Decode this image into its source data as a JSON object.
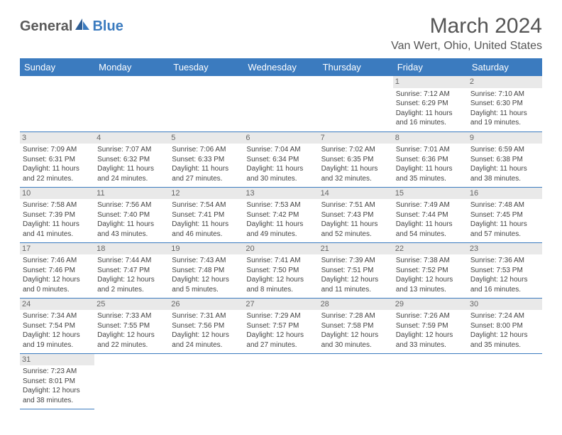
{
  "brand": {
    "part1": "General",
    "part2": "Blue"
  },
  "title": "March 2024",
  "location": "Van Wert, Ohio, United States",
  "colors": {
    "header_bg": "#3b7bbf",
    "header_text": "#ffffff",
    "daynum_bg": "#e9e9e9",
    "border": "#3b7bbf",
    "body_text": "#444444",
    "title_text": "#555555"
  },
  "typography": {
    "title_fontsize": 30,
    "location_fontsize": 16,
    "header_fontsize": 13,
    "cell_fontsize": 10,
    "daynum_fontsize": 11
  },
  "daysOfWeek": [
    "Sunday",
    "Monday",
    "Tuesday",
    "Wednesday",
    "Thursday",
    "Friday",
    "Saturday"
  ],
  "weeks": [
    [
      null,
      null,
      null,
      null,
      null,
      {
        "n": "1",
        "sunrise": "Sunrise: 7:12 AM",
        "sunset": "Sunset: 6:29 PM",
        "daylight": "Daylight: 11 hours and 16 minutes."
      },
      {
        "n": "2",
        "sunrise": "Sunrise: 7:10 AM",
        "sunset": "Sunset: 6:30 PM",
        "daylight": "Daylight: 11 hours and 19 minutes."
      }
    ],
    [
      {
        "n": "3",
        "sunrise": "Sunrise: 7:09 AM",
        "sunset": "Sunset: 6:31 PM",
        "daylight": "Daylight: 11 hours and 22 minutes."
      },
      {
        "n": "4",
        "sunrise": "Sunrise: 7:07 AM",
        "sunset": "Sunset: 6:32 PM",
        "daylight": "Daylight: 11 hours and 24 minutes."
      },
      {
        "n": "5",
        "sunrise": "Sunrise: 7:06 AM",
        "sunset": "Sunset: 6:33 PM",
        "daylight": "Daylight: 11 hours and 27 minutes."
      },
      {
        "n": "6",
        "sunrise": "Sunrise: 7:04 AM",
        "sunset": "Sunset: 6:34 PM",
        "daylight": "Daylight: 11 hours and 30 minutes."
      },
      {
        "n": "7",
        "sunrise": "Sunrise: 7:02 AM",
        "sunset": "Sunset: 6:35 PM",
        "daylight": "Daylight: 11 hours and 32 minutes."
      },
      {
        "n": "8",
        "sunrise": "Sunrise: 7:01 AM",
        "sunset": "Sunset: 6:36 PM",
        "daylight": "Daylight: 11 hours and 35 minutes."
      },
      {
        "n": "9",
        "sunrise": "Sunrise: 6:59 AM",
        "sunset": "Sunset: 6:38 PM",
        "daylight": "Daylight: 11 hours and 38 minutes."
      }
    ],
    [
      {
        "n": "10",
        "sunrise": "Sunrise: 7:58 AM",
        "sunset": "Sunset: 7:39 PM",
        "daylight": "Daylight: 11 hours and 41 minutes."
      },
      {
        "n": "11",
        "sunrise": "Sunrise: 7:56 AM",
        "sunset": "Sunset: 7:40 PM",
        "daylight": "Daylight: 11 hours and 43 minutes."
      },
      {
        "n": "12",
        "sunrise": "Sunrise: 7:54 AM",
        "sunset": "Sunset: 7:41 PM",
        "daylight": "Daylight: 11 hours and 46 minutes."
      },
      {
        "n": "13",
        "sunrise": "Sunrise: 7:53 AM",
        "sunset": "Sunset: 7:42 PM",
        "daylight": "Daylight: 11 hours and 49 minutes."
      },
      {
        "n": "14",
        "sunrise": "Sunrise: 7:51 AM",
        "sunset": "Sunset: 7:43 PM",
        "daylight": "Daylight: 11 hours and 52 minutes."
      },
      {
        "n": "15",
        "sunrise": "Sunrise: 7:49 AM",
        "sunset": "Sunset: 7:44 PM",
        "daylight": "Daylight: 11 hours and 54 minutes."
      },
      {
        "n": "16",
        "sunrise": "Sunrise: 7:48 AM",
        "sunset": "Sunset: 7:45 PM",
        "daylight": "Daylight: 11 hours and 57 minutes."
      }
    ],
    [
      {
        "n": "17",
        "sunrise": "Sunrise: 7:46 AM",
        "sunset": "Sunset: 7:46 PM",
        "daylight": "Daylight: 12 hours and 0 minutes."
      },
      {
        "n": "18",
        "sunrise": "Sunrise: 7:44 AM",
        "sunset": "Sunset: 7:47 PM",
        "daylight": "Daylight: 12 hours and 2 minutes."
      },
      {
        "n": "19",
        "sunrise": "Sunrise: 7:43 AM",
        "sunset": "Sunset: 7:48 PM",
        "daylight": "Daylight: 12 hours and 5 minutes."
      },
      {
        "n": "20",
        "sunrise": "Sunrise: 7:41 AM",
        "sunset": "Sunset: 7:50 PM",
        "daylight": "Daylight: 12 hours and 8 minutes."
      },
      {
        "n": "21",
        "sunrise": "Sunrise: 7:39 AM",
        "sunset": "Sunset: 7:51 PM",
        "daylight": "Daylight: 12 hours and 11 minutes."
      },
      {
        "n": "22",
        "sunrise": "Sunrise: 7:38 AM",
        "sunset": "Sunset: 7:52 PM",
        "daylight": "Daylight: 12 hours and 13 minutes."
      },
      {
        "n": "23",
        "sunrise": "Sunrise: 7:36 AM",
        "sunset": "Sunset: 7:53 PM",
        "daylight": "Daylight: 12 hours and 16 minutes."
      }
    ],
    [
      {
        "n": "24",
        "sunrise": "Sunrise: 7:34 AM",
        "sunset": "Sunset: 7:54 PM",
        "daylight": "Daylight: 12 hours and 19 minutes."
      },
      {
        "n": "25",
        "sunrise": "Sunrise: 7:33 AM",
        "sunset": "Sunset: 7:55 PM",
        "daylight": "Daylight: 12 hours and 22 minutes."
      },
      {
        "n": "26",
        "sunrise": "Sunrise: 7:31 AM",
        "sunset": "Sunset: 7:56 PM",
        "daylight": "Daylight: 12 hours and 24 minutes."
      },
      {
        "n": "27",
        "sunrise": "Sunrise: 7:29 AM",
        "sunset": "Sunset: 7:57 PM",
        "daylight": "Daylight: 12 hours and 27 minutes."
      },
      {
        "n": "28",
        "sunrise": "Sunrise: 7:28 AM",
        "sunset": "Sunset: 7:58 PM",
        "daylight": "Daylight: 12 hours and 30 minutes."
      },
      {
        "n": "29",
        "sunrise": "Sunrise: 7:26 AM",
        "sunset": "Sunset: 7:59 PM",
        "daylight": "Daylight: 12 hours and 33 minutes."
      },
      {
        "n": "30",
        "sunrise": "Sunrise: 7:24 AM",
        "sunset": "Sunset: 8:00 PM",
        "daylight": "Daylight: 12 hours and 35 minutes."
      }
    ],
    [
      {
        "n": "31",
        "sunrise": "Sunrise: 7:23 AM",
        "sunset": "Sunset: 8:01 PM",
        "daylight": "Daylight: 12 hours and 38 minutes."
      },
      null,
      null,
      null,
      null,
      null,
      null
    ]
  ]
}
